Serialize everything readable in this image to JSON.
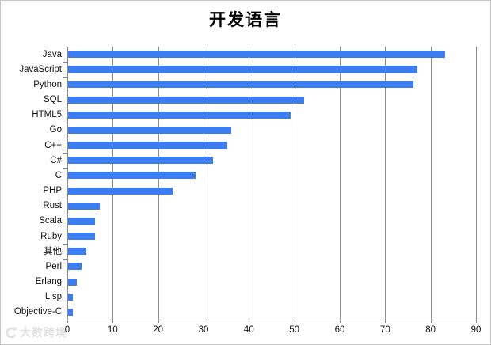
{
  "title": "开发语言",
  "watermark": {
    "logo_icon": "crescent-logo-icon",
    "text": "大数跨境"
  },
  "chart_data": {
    "type": "bar",
    "orientation": "horizontal",
    "title": "开发语言",
    "categories": [
      "Java",
      "JavaScript",
      "Python",
      "SQL",
      "HTML5",
      "Go",
      "C++",
      "C#",
      "C",
      "PHP",
      "Rust",
      "Scala",
      "Ruby",
      "其他",
      "Perl",
      "Erlang",
      "Lisp",
      "Objective-C"
    ],
    "values": [
      83,
      77,
      76,
      52,
      49,
      36,
      35,
      32,
      28,
      23,
      7,
      6,
      6,
      4,
      3,
      2,
      1,
      1
    ],
    "xlabel": "",
    "ylabel": "",
    "xlim": [
      0,
      90
    ],
    "xticks": [
      0,
      10,
      20,
      30,
      40,
      50,
      60,
      70,
      80,
      90
    ],
    "grid": true,
    "legend": false,
    "bar_color": "#3d7df2",
    "axis_color": "#898989",
    "label_color": "#141414"
  }
}
